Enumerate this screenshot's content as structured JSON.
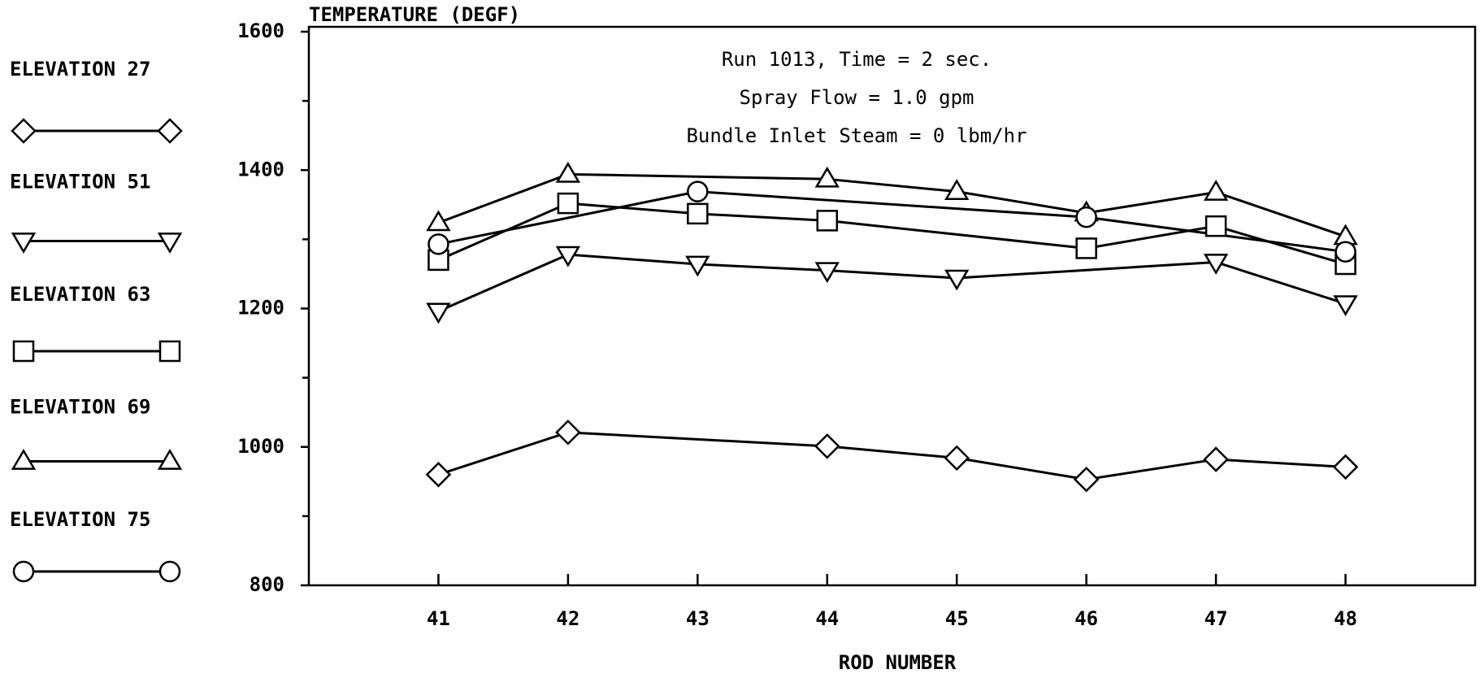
{
  "chart_data": {
    "type": "line",
    "ylabel": "TEMPERATURE (DEGF)",
    "xlabel": "ROD NUMBER",
    "annotations": [
      "Run 1013, Time = 2 sec.",
      "Spray Flow = 1.0 gpm",
      "Bundle Inlet Steam = 0 lbm/hr"
    ],
    "xlim": [
      40,
      49
    ],
    "xticks": [
      41,
      42,
      43,
      44,
      45,
      46,
      47,
      48
    ],
    "ylim": [
      800,
      1600
    ],
    "yticks": [
      800,
      1000,
      1200,
      1400,
      1600
    ],
    "yminor_ticks": [
      900,
      1100,
      1300,
      1500
    ],
    "grid": false,
    "legend": "left",
    "series": [
      {
        "name": "ELEVATION 27",
        "color": "#000000",
        "marker": "diamond",
        "x": [
          41,
          42,
          44,
          45,
          46,
          47,
          48
        ],
        "values": [
          960,
          1021,
          1001,
          984,
          953,
          982,
          971
        ]
      },
      {
        "name": "ELEVATION 51",
        "color": "#000000",
        "marker": "triangle-down",
        "x": [
          41,
          42,
          43,
          44,
          45,
          47,
          48
        ],
        "values": [
          1196,
          1278,
          1264,
          1255,
          1244,
          1267,
          1207
        ]
      },
      {
        "name": "ELEVATION 63",
        "color": "#000000",
        "marker": "square",
        "x": [
          41,
          42,
          43,
          44,
          46,
          47,
          48
        ],
        "values": [
          1270,
          1352,
          1337,
          1327,
          1287,
          1319,
          1264
        ]
      },
      {
        "name": "ELEVATION 69",
        "color": "#000000",
        "marker": "triangle-up",
        "x": [
          41,
          42,
          44,
          45,
          46,
          47,
          48
        ],
        "values": [
          1324,
          1394,
          1387,
          1369,
          1338,
          1368,
          1304
        ]
      },
      {
        "name": "ELEVATION 75",
        "color": "#000000",
        "marker": "circle",
        "x": [
          41,
          43,
          46,
          48
        ],
        "values": [
          1293,
          1369,
          1332,
          1282
        ]
      }
    ]
  }
}
